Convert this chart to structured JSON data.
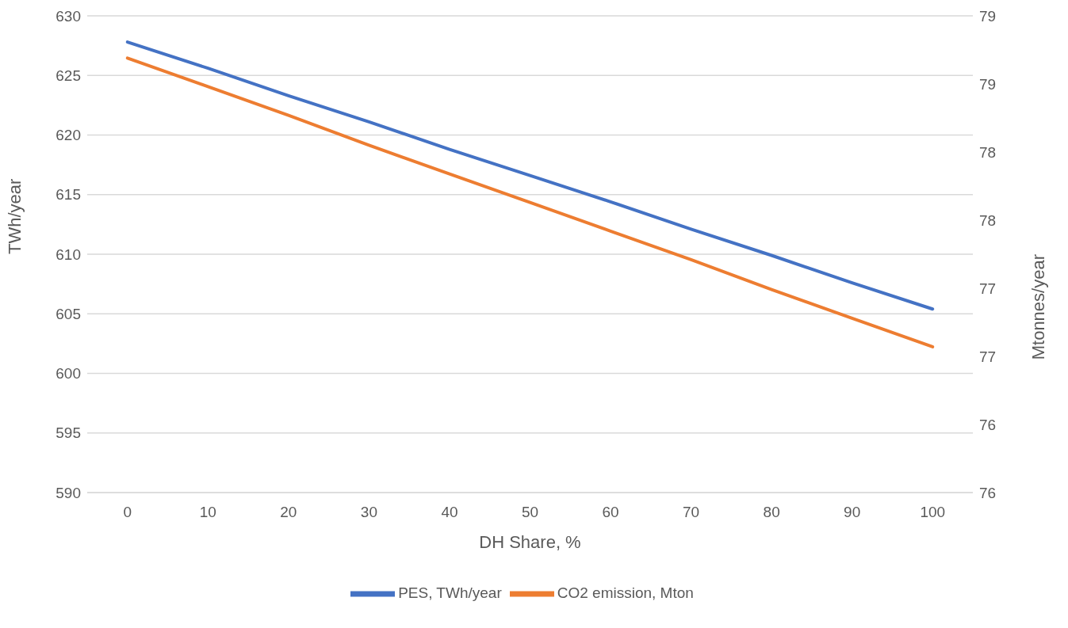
{
  "chart_data": {
    "type": "line",
    "xlabel": "DH Share, %",
    "ylabel": "TWh/year",
    "y2label": "Mtonnes/year",
    "x": [
      0,
      10,
      20,
      30,
      40,
      50,
      60,
      70,
      80,
      90,
      100
    ],
    "series": [
      {
        "name": "PES, TWh/year",
        "color": "#4472c4",
        "values": [
          627.8,
          625.6,
          623.3,
          621.1,
          618.8,
          616.6,
          614.4,
          612.1,
          609.9,
          607.6,
          605.4
        ]
      },
      {
        "name": "CO2 emission, Mton",
        "color": "#ed7d31",
        "axis": "y2",
        "values": [
          79.19,
          78.98,
          78.77,
          78.55,
          78.34,
          78.13,
          77.92,
          77.71,
          77.49,
          77.28,
          77.07
        ]
      }
    ],
    "xlim": [
      -5,
      105
    ],
    "xticks": [
      0,
      10,
      20,
      30,
      40,
      50,
      60,
      70,
      80,
      90,
      100
    ],
    "ylim": [
      590,
      630
    ],
    "yticks": [
      590,
      595,
      600,
      605,
      610,
      615,
      620,
      625,
      630
    ],
    "y2lim": [
      76,
      79.5
    ],
    "y2ticks": [
      {
        "value": 76,
        "label": "76"
      },
      {
        "value": 76.5,
        "label": "76"
      },
      {
        "value": 77,
        "label": "77"
      },
      {
        "value": 77.5,
        "label": "77"
      },
      {
        "value": 78,
        "label": "78"
      },
      {
        "value": 78.5,
        "label": "78"
      },
      {
        "value": 79,
        "label": "79"
      },
      {
        "value": 79.5,
        "label": "79"
      }
    ],
    "grid": "y",
    "legend": "bottom",
    "marker": "none",
    "line_style": "solid"
  }
}
